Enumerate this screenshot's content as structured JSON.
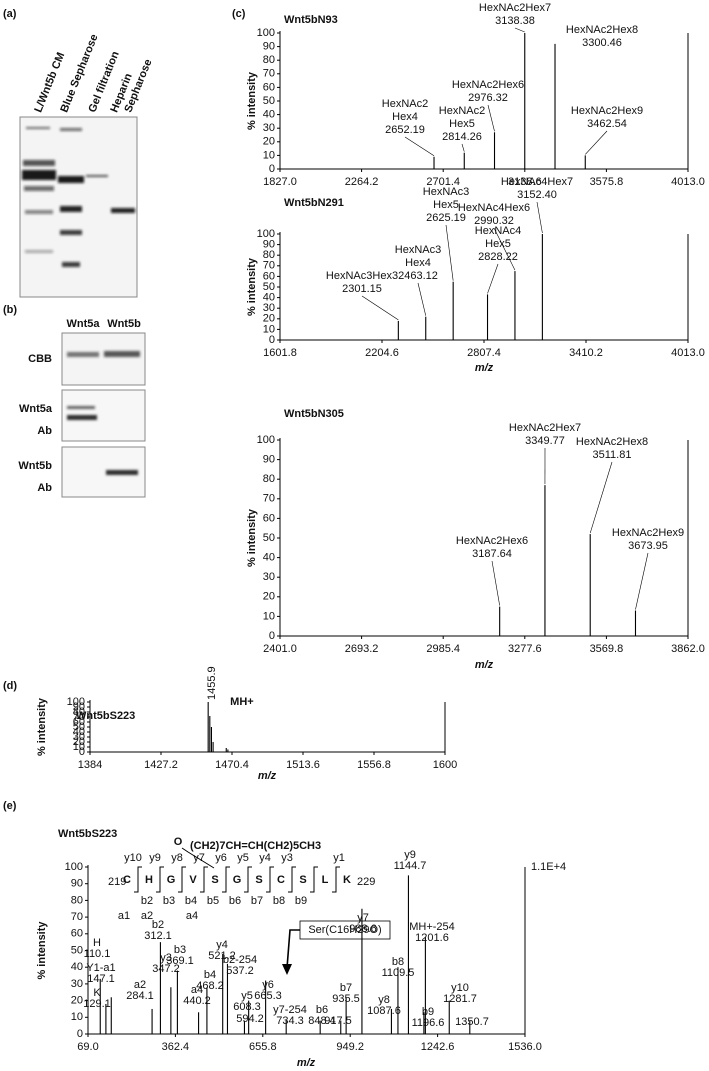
{
  "panels": {
    "a": {
      "label": "(a)",
      "lanes": [
        [
          "L/Wnt5b CM"
        ],
        [
          "Blue Sepharose"
        ],
        [
          "Gel filtration"
        ],
        [
          "Heparin",
          "Sepharose"
        ]
      ]
    },
    "b": {
      "label": "(b)",
      "columns": [
        "Wnt5a",
        "Wnt5b"
      ],
      "rows": [
        [
          "CBB"
        ],
        [
          "Wnt5a",
          "Ab"
        ],
        [
          "Wnt5b",
          "Ab"
        ]
      ]
    },
    "c": {
      "label": "(c)"
    },
    "d": {
      "label": "(d)"
    },
    "e": {
      "label": "(e)"
    }
  },
  "chart_data": [
    {
      "type": "spectrum",
      "title": "Wnt5bN93",
      "y_label": "% intensity",
      "xlim": [
        1827,
        4013
      ],
      "xticks": [
        {
          "value": 1827,
          "label": "1827.0"
        },
        {
          "value": 2264.2,
          "label": "2264.2"
        },
        {
          "value": 2701.4,
          "label": "2701.4"
        },
        {
          "value": 3138.6,
          "label": "3138.6"
        },
        {
          "value": 3575.8,
          "label": "3575.8"
        },
        {
          "value": 4013,
          "label": "4013.0"
        }
      ],
      "ylim": [
        0,
        100
      ],
      "yticks": [
        0,
        10,
        20,
        30,
        40,
        50,
        60,
        70,
        80,
        90,
        100
      ],
      "x": [
        2652.19,
        2814.26,
        2976.32,
        3138.38,
        3300.46,
        3462.54
      ],
      "values": [
        9,
        12,
        27,
        100,
        92,
        10
      ],
      "x_labels": [
        "2652.19",
        "2814.26",
        "2976.32",
        "3138.38",
        "3300.46",
        "3462.54"
      ],
      "annotations": [
        [
          "HexNAc2",
          "Hex4"
        ],
        [
          "HexNAc2",
          "Hex5"
        ],
        [
          "HexNAc2Hex6"
        ],
        [
          "HexNAc2Hex7"
        ],
        [
          "HexNAc2Hex8"
        ],
        [
          "HexNAc2Hex9"
        ]
      ],
      "color": "#000000",
      "annotation_color": "#d9301e"
    },
    {
      "type": "spectrum",
      "title": "Wnt5bN291",
      "y_label": "% intensity",
      "x_label": "m/z",
      "xlim": [
        1601.8,
        4013
      ],
      "xticks": [
        {
          "value": 1601.8,
          "label": "1601.8"
        },
        {
          "value": 2204.6,
          "label": "2204.6"
        },
        {
          "value": 2807.4,
          "label": "2807.4"
        },
        {
          "value": 3410.2,
          "label": "3410.2"
        },
        {
          "value": 4013,
          "label": "4013.0"
        }
      ],
      "ylim": [
        0,
        100
      ],
      "yticks": [
        0,
        10,
        20,
        30,
        40,
        50,
        60,
        70,
        80,
        90,
        100
      ],
      "x": [
        2301.15,
        2463.12,
        2625.19,
        2828.22,
        2990.32,
        3152.4
      ],
      "values": [
        18,
        22,
        55,
        43,
        65,
        100
      ],
      "x_labels": [
        "2301.15",
        "2463.12",
        "2625.19",
        "2828.22",
        "2990.32",
        "3152.40"
      ],
      "annotations": [
        [
          "HexNAc3Hex3"
        ],
        [
          "HexNAc3",
          "Hex4"
        ],
        [
          "HexNAc3",
          "Hex5"
        ],
        [
          "HexNAc4",
          "Hex5"
        ],
        [
          "HexNAc4Hex6"
        ],
        [
          "HexNAc4Hex7"
        ]
      ],
      "color": "#000000",
      "annotation_color": "#d9301e"
    },
    {
      "type": "spectrum",
      "title": "Wnt5bN305",
      "y_label": "% intensity",
      "x_label": "m/z",
      "xlim": [
        2401,
        3862
      ],
      "xticks": [
        {
          "value": 2401,
          "label": "2401.0"
        },
        {
          "value": 2693.2,
          "label": "2693.2"
        },
        {
          "value": 2985.4,
          "label": "2985.4"
        },
        {
          "value": 3277.6,
          "label": "3277.6"
        },
        {
          "value": 3569.8,
          "label": "3569.8"
        },
        {
          "value": 3862,
          "label": "3862.0"
        }
      ],
      "ylim": [
        0,
        100
      ],
      "yticks": [
        0,
        10,
        20,
        30,
        40,
        50,
        60,
        70,
        80,
        90,
        100
      ],
      "x": [
        3187.64,
        3349.77,
        3511.81,
        3673.95
      ],
      "values": [
        15,
        77,
        52,
        13
      ],
      "x_labels": [
        "3187.64",
        "3349.77",
        "3511.81",
        "3673.95"
      ],
      "annotations": [
        [
          "HexNAc2Hex6"
        ],
        [
          "HexNAc2Hex7"
        ],
        [
          "HexNAc2Hex8"
        ],
        [
          "HexNAc2Hex9"
        ]
      ],
      "color": "#000000",
      "annotation_color": "#d9301e"
    },
    {
      "type": "spectrum",
      "title": "Wnt5bS223",
      "y_label": "% intensity",
      "x_label": "m/z",
      "xlim": [
        1384,
        1600
      ],
      "xticks": [
        1384,
        1427.2,
        1470.4,
        1513.6,
        1556.8,
        1600
      ],
      "ylim": [
        0,
        100
      ],
      "yticks": [
        0,
        10,
        20,
        30,
        40,
        50,
        60,
        70,
        80,
        90,
        100
      ],
      "x": [
        1455.9,
        1456.9,
        1457.9,
        1458.9,
        1466.9,
        1467.9
      ],
      "values": [
        100,
        72,
        50,
        20,
        8,
        5
      ],
      "x_labels": [
        "1455.9",
        null,
        null,
        null,
        null,
        null
      ],
      "annotations": [
        [
          "MH+"
        ],
        null,
        null,
        null,
        null,
        null
      ],
      "color": "#000000",
      "annotation_color": "#000000",
      "x_label_color": "#d9301e"
    },
    {
      "type": "spectrum",
      "title": "Wnt5bS223",
      "y_label": "% intensity",
      "x_label": "m/z",
      "xlim": [
        69,
        1536
      ],
      "xticks": [
        {
          "value": 69,
          "label": "69.0"
        },
        362.4,
        655.8,
        949.2,
        1242.6,
        {
          "value": 1536,
          "label": "1536.0"
        }
      ],
      "ylim": [
        0,
        100
      ],
      "yticks": [
        0,
        10,
        20,
        30,
        40,
        50,
        60,
        70,
        80,
        90,
        100
      ],
      "x": [
        110.1,
        129.1,
        147.1,
        284.1,
        312.1,
        347.2,
        369.1,
        440.2,
        468.2,
        521.2,
        537.2,
        594.2,
        608.3,
        665.3,
        734.3,
        848.4,
        917.5,
        935.5,
        988.6,
        1087.6,
        1109.5,
        1144.7,
        1196.6,
        1201.6,
        1281.7,
        1350.7
      ],
      "values": [
        33,
        18,
        22,
        15,
        55,
        28,
        38,
        13,
        28,
        48,
        42,
        8,
        20,
        32,
        8,
        8,
        8,
        22,
        75,
        15,
        40,
        95,
        13,
        58,
        20,
        8
      ],
      "x_labels": [
        "110.1",
        "129.1",
        "147.1",
        "284.1",
        "312.1",
        "347.2",
        "369.1",
        "440.2",
        "468.2",
        "521.2",
        "537.2",
        "594.2",
        "608.3",
        "665.3",
        "734.3",
        "848.4",
        "917.5",
        "935.5",
        "988.6",
        "1087.6",
        "1109.5",
        "1144.7",
        "1196.6",
        "1201.6",
        "1281.7",
        "1350.7"
      ],
      "annotations": [
        [
          "H"
        ],
        [
          "K"
        ],
        [
          "Y1-a1"
        ],
        [
          "a2"
        ],
        [
          "b2"
        ],
        [
          "y3"
        ],
        [
          "b3"
        ],
        [
          "a4"
        ],
        [
          "b4"
        ],
        [
          "y4"
        ],
        [
          "b2-254"
        ],
        null,
        [
          "y5"
        ],
        [
          "y6"
        ],
        [
          "y7-254"
        ],
        [
          "b6"
        ],
        null,
        [
          "b7"
        ],
        [
          "y7"
        ],
        [
          "y8"
        ],
        [
          "b8"
        ],
        [
          "y9"
        ],
        [
          "b9"
        ],
        [
          "MH+-254"
        ],
        [
          "y10"
        ],
        null
      ],
      "annotation_colors": [
        "#000000",
        "#000000",
        "#e8a020",
        "#e8a020",
        "#2a57c4",
        "#d9301e",
        "#2a57c4",
        "#e8a020",
        "#2a57c4",
        "#d9301e",
        "#2a57c4",
        null,
        "#d9301e",
        "#d9301e",
        "#d9301e",
        "#2a57c4",
        null,
        "#2a57c4",
        "#d9301e",
        "#d9301e",
        "#2a57c4",
        "#d9301e",
        "#2a57c4",
        "#777777",
        "#d9301e",
        null
      ],
      "color": "#000000",
      "scale_label": "1.1E+4",
      "modification": "Ser(C16H29O)",
      "sequence": {
        "start": 219,
        "end": 229,
        "residues": [
          "C",
          "H",
          "G",
          "V",
          "S",
          "G",
          "S",
          "C",
          "S",
          "L",
          "K"
        ],
        "y_ions": [
          "y10",
          "y9",
          "y8",
          "y7",
          "y6",
          "y5",
          "y4",
          "y3",
          "y1"
        ],
        "b_ions": [
          "b2",
          "b3",
          "b4",
          "b5",
          "b6",
          "b7",
          "b8",
          "b9"
        ],
        "a_ions": [
          "a1",
          "a2",
          "a4"
        ],
        "formula_o": "O",
        "formula": "(CH2)7CH=CH(CH2)5CH3",
        "y_color": "#d9301e",
        "b_color": "#2a57c4",
        "a_color": "#e8a020"
      }
    }
  ]
}
